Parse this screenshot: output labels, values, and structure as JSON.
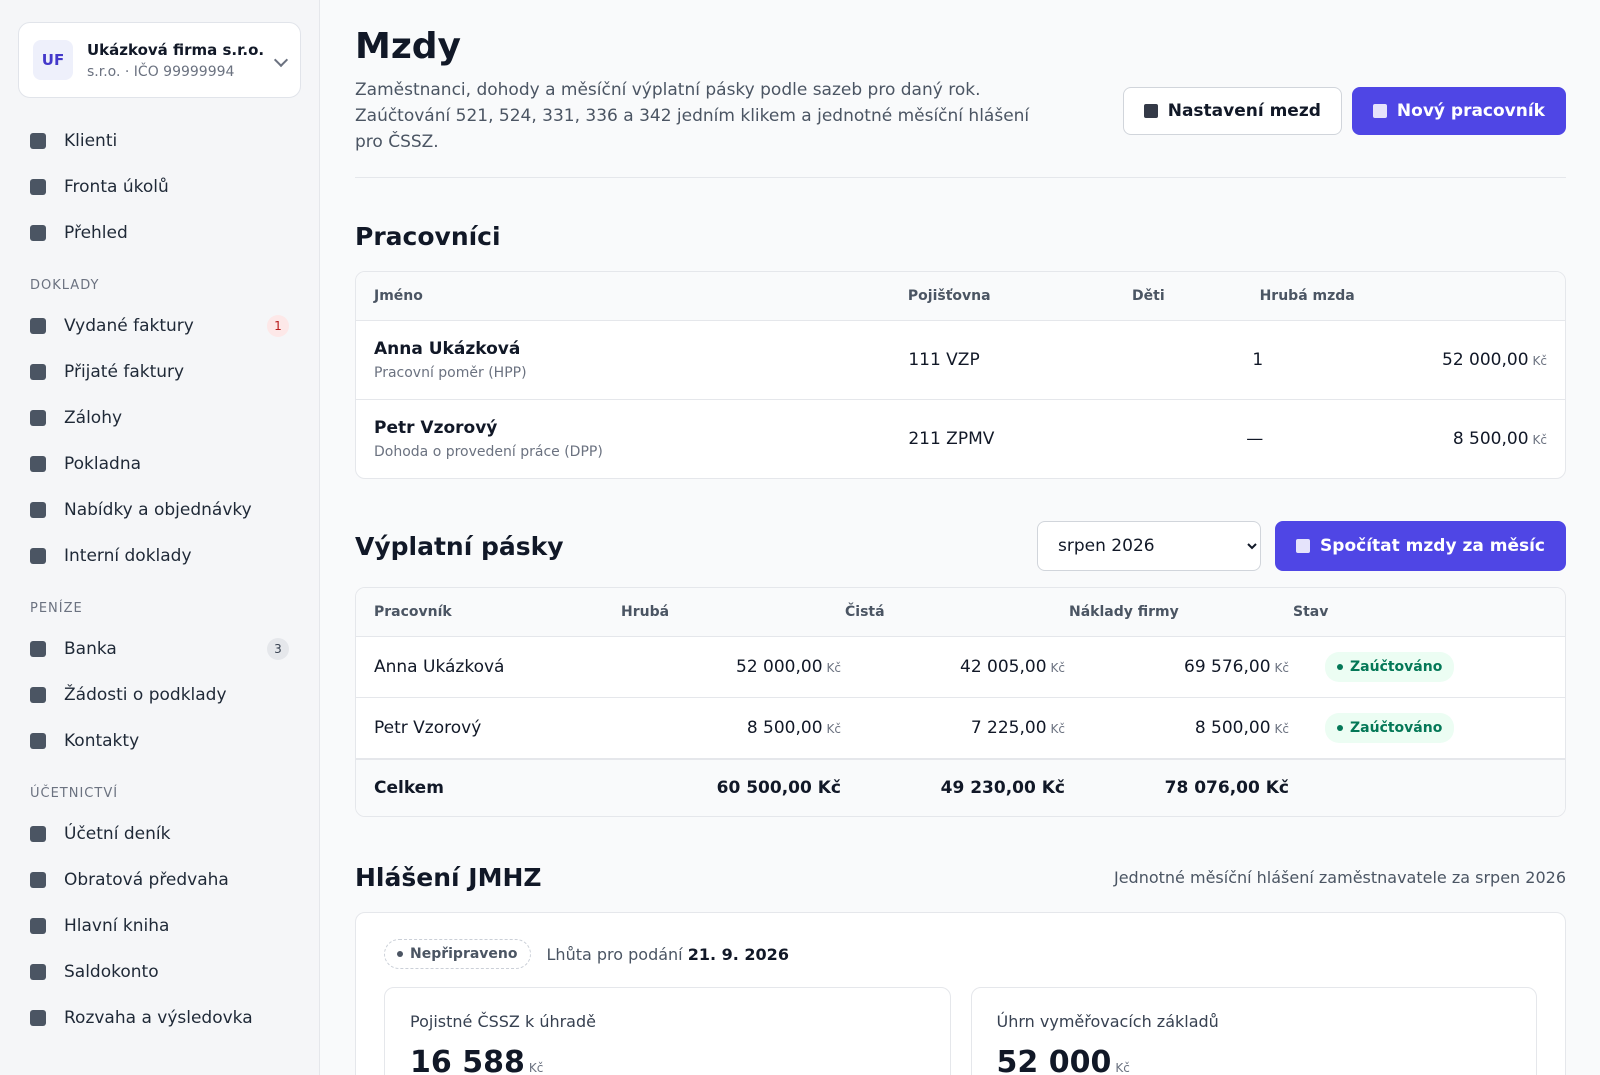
{
  "sidebar": {
    "company": {
      "initials": "UF",
      "name": "Ukázková firma s.r.o.",
      "meta": "s.r.o. · IČO 99999994"
    },
    "groups": [
      {
        "items": [
          {
            "label": "Klienti"
          },
          {
            "label": "Fronta úkolů"
          },
          {
            "label": "Přehled"
          }
        ]
      },
      {
        "title": "DOKLADY",
        "items": [
          {
            "label": "Vydané faktury",
            "badge": "1"
          },
          {
            "label": "Přijaté faktury"
          },
          {
            "label": "Zálohy"
          },
          {
            "label": "Pokladna"
          },
          {
            "label": "Nabídky a objednávky"
          },
          {
            "label": "Interní doklady"
          }
        ]
      },
      {
        "title": "PENÍZE",
        "items": [
          {
            "label": "Banka",
            "badge": "3"
          },
          {
            "label": "Žádosti o podklady"
          },
          {
            "label": "Kontakty"
          }
        ]
      },
      {
        "title": "ÚČETNICTVÍ",
        "items": [
          {
            "label": "Účetní deník"
          },
          {
            "label": "Obratová předvaha"
          },
          {
            "label": "Hlavní kniha"
          },
          {
            "label": "Saldokonto"
          },
          {
            "label": "Rozvaha a výsledovka"
          }
        ]
      }
    ]
  },
  "header": {
    "title": "Mzdy",
    "description": "Zaměstnanci, dohody a měsíční výplatní pásky podle sazeb pro daný rok. Zaúčtování 521, 524, 331, 336 a 342 jedním klikem a jednotné měsíční hlášení pro ČSSZ.",
    "buttons": [
      "Nastavení mezd",
      "Nový pracovník"
    ]
  },
  "workers": {
    "title": "Pracovníci",
    "columns": [
      "Jméno",
      "Pojišťovna",
      "Děti",
      "Hrubá mzda"
    ],
    "rows": [
      {
        "name": "Anna Ukázková",
        "type": "Pracovní poměr (HPP)",
        "insurer": "111 VZP",
        "children": "1",
        "gross": {
          "amount": "52 000,00",
          "unit": "Kč"
        }
      },
      {
        "name": "Petr Vzorový",
        "type": "Dohoda o provedení práce (DPP)",
        "insurer": "211 ZPMV",
        "children": "—",
        "gross": {
          "amount": "8 500,00",
          "unit": "Kč"
        }
      }
    ]
  },
  "payslips": {
    "title": "Výplatní pásky",
    "month": "srpen 2026",
    "button": "Spočítat mzdy za měsíc",
    "columns": [
      "Pracovník",
      "Hrubá",
      "Čistá",
      "Náklady firmy",
      "Stav"
    ],
    "rows": [
      {
        "name": "Anna Ukázková",
        "gross": {
          "amount": "52 000,00",
          "unit": "Kč"
        },
        "net": {
          "amount": "42 005,00",
          "unit": "Kč"
        },
        "cost": {
          "amount": "69 576,00",
          "unit": "Kč"
        },
        "status": "Zaúčtováno"
      },
      {
        "name": "Petr Vzorový",
        "gross": {
          "amount": "8 500,00",
          "unit": "Kč"
        },
        "net": {
          "amount": "7 225,00",
          "unit": "Kč"
        },
        "cost": {
          "amount": "8 500,00",
          "unit": "Kč"
        },
        "status": "Zaúčtováno"
      }
    ],
    "total": {
      "label": "Celkem",
      "gross": "60 500,00 Kč",
      "net": "49 230,00 Kč",
      "cost": "78 076,00 Kč"
    }
  },
  "jmhz": {
    "title": "Hlášení JMHZ",
    "subtitle": "Jednotné měsíční hlášení zaměstnavatele za srpen 2026",
    "status": "Nepřipraveno",
    "deadline_label": "Lhůta pro podání",
    "deadline": "21. 9. 2026",
    "cards": [
      {
        "label": "Pojistné ČSSZ k úhradě",
        "value": "16 588",
        "unit": "Kč"
      },
      {
        "label": "Úhrn vyměřovacích základů",
        "value": "52 000",
        "unit": "Kč"
      }
    ]
  }
}
